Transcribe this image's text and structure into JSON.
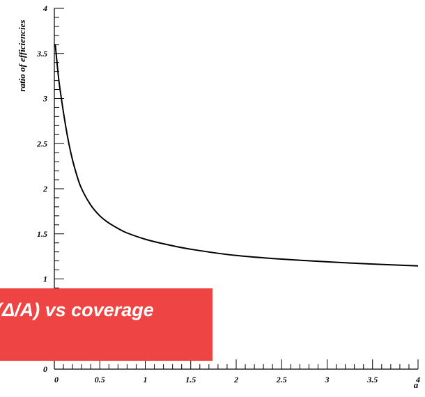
{
  "chart_data": {
    "type": "line",
    "xlabel": "a",
    "ylabel": "ratio of efficiencies",
    "xlim": [
      0,
      4
    ],
    "ylim": [
      0,
      4
    ],
    "x_ticks": [
      0,
      0.5,
      1,
      1.5,
      2,
      2.5,
      3,
      3.5,
      4
    ],
    "x_tick_labels": [
      "0",
      "0.5",
      "1",
      "1.5",
      "2",
      "2.5",
      "3",
      "3.5",
      "4"
    ],
    "y_ticks": [
      0,
      1,
      1.5,
      2,
      2.5,
      3,
      3.5,
      4
    ],
    "y_tick_labels": [
      "0",
      "1",
      "1.5",
      "2",
      "2.5",
      "3",
      "3.5",
      "4"
    ],
    "grid": false,
    "series": [
      {
        "x": [
          0.01,
          0.05,
          0.1,
          0.15,
          0.2,
          0.25,
          0.3,
          0.4,
          0.5,
          0.6,
          0.7,
          0.8,
          1.0,
          1.2,
          1.5,
          2.0,
          2.5,
          3.0,
          3.5,
          4.0
        ],
        "y": [
          3.6,
          3.2,
          2.85,
          2.55,
          2.32,
          2.14,
          2.0,
          1.82,
          1.7,
          1.62,
          1.56,
          1.51,
          1.44,
          1.39,
          1.33,
          1.26,
          1.22,
          1.19,
          1.165,
          1.145
        ]
      }
    ]
  },
  "overlay": {
    "text": "(Δ/A) vs coverage",
    "color": "#ef4444"
  }
}
